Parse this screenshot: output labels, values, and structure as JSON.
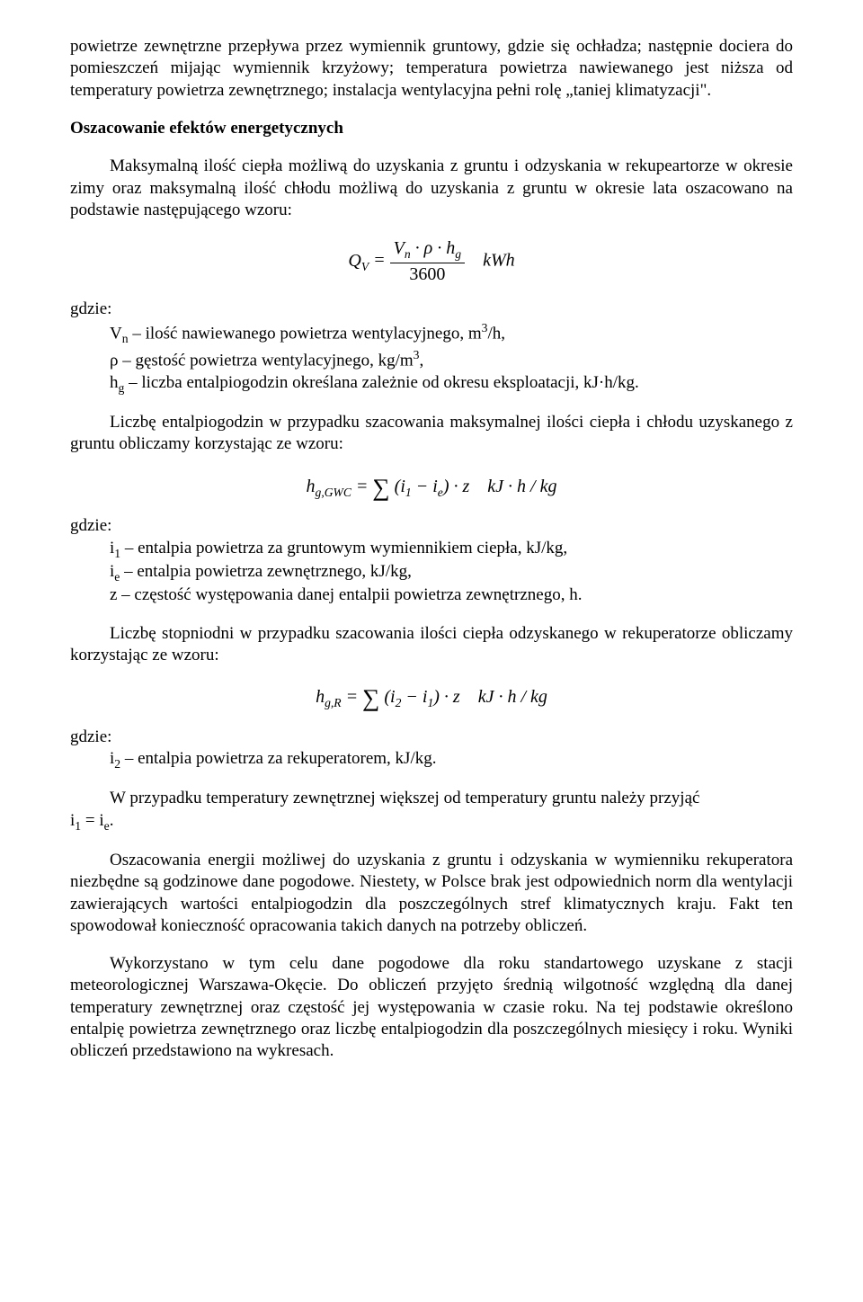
{
  "p1": "powietrze zewnętrzne przepływa przez wymiennik gruntowy, gdzie się ochładza; następnie dociera do pomieszczeń mijając wymiennik krzyżowy; temperatura powietrza nawiewanego jest niższa od temperatury powietrza zewnętrznego; instalacja wentylacyjna pełni rolę „taniej klimatyzacji\".",
  "h1": "Oszacowanie efektów energetycznych",
  "p2": "Maksymalną ilość ciepła możliwą do uzyskania z gruntu i odzyskania w rekupeartorze w okresie zimy oraz maksymalną ilość chłodu możliwą do uzyskania z gruntu w okresie lata oszacowano na podstawie następującego wzoru:",
  "f1": {
    "lhs": "Q",
    "lhs_sub": "V",
    "num_a": "V",
    "num_a_sub": "n",
    "num_b": "h",
    "num_b_sub": "g",
    "den": "3600",
    "unit": "kWh"
  },
  "gdzie_label": "gdzie:",
  "g1": {
    "a_sym": "V",
    "a_sub": "n",
    "a_txt": " – ilość nawiewanego powietrza wentylacyjnego, m",
    "a_sup": "3",
    "a_txt2": "/h,",
    "b_txt": "ρ – gęstość powietrza wentylacyjnego, kg/m",
    "b_sup": "3",
    "b_txt2": ",",
    "c_sym": "h",
    "c_sub": "g",
    "c_txt": " – liczba entalpiogodzin określana zależnie od okresu eksploatacji, kJ·h/kg."
  },
  "p3": "Liczbę entalpiogodzin w przypadku szacowania maksymalnej ilości ciepła i chłodu uzyskanego z gruntu obliczamy korzystając ze wzoru:",
  "f2": {
    "lhs": "h",
    "lhs_sub": "g,GWC",
    "a": "i",
    "a_sub": "1",
    "b": "i",
    "b_sub": "e",
    "z": "z",
    "unit": "kJ · h / kg"
  },
  "g2": {
    "a_sym": "i",
    "a_sub": "1",
    "a_txt": " – entalpia powietrza za gruntowym wymiennikiem ciepła, kJ/kg,",
    "b_sym": "i",
    "b_sub": "e",
    "b_txt": " – entalpia powietrza zewnętrznego, kJ/kg,",
    "c_txt": "z – częstość występowania danej entalpii powietrza zewnętrznego, h."
  },
  "p4": "Liczbę stopniodni w przypadku szacowania ilości ciepła odzyskanego w rekuperatorze obliczamy korzystając ze wzoru:",
  "f3": {
    "lhs": "h",
    "lhs_sub": "g,R",
    "a": "i",
    "a_sub": "2",
    "b": "i",
    "b_sub": "1",
    "z": "z",
    "unit": "kJ · h / kg"
  },
  "g3": {
    "a_sym": "i",
    "a_sub": "2",
    "a_txt": " – entalpia powietrza za rekuperatorem, kJ/kg."
  },
  "p5_pre": "W przypadku temperatury zewnętrznej większej od temperatury gruntu należy przyjąć",
  "p5_eq": {
    "a": "i",
    "a_sub": "1",
    "b": "i",
    "b_sub": "e"
  },
  "p6": "Oszacowania energii możliwej do uzyskania z gruntu i odzyskania w wymienniku rekuperatora niezbędne są godzinowe dane pogodowe. Niestety, w Polsce brak jest odpowiednich norm dla wentylacji zawierających wartości entalpiogodzin dla poszczególnych stref klimatycznych kraju. Fakt ten spowodował konieczność opracowania takich danych na potrzeby obliczeń.",
  "p7": "Wykorzystano w tym celu dane pogodowe dla roku standartowego uzyskane z stacji meteorologicznej Warszawa-Okęcie. Do obliczeń przyjęto średnią wilgotność względną dla danej temperatury zewnętrznej oraz częstość jej występowania w czasie roku. Na tej podstawie określono entalpię powietrza zewnętrznego oraz liczbę entalpiogodzin dla poszczególnych miesięcy i roku. Wyniki obliczeń przedstawiono na wykresach."
}
